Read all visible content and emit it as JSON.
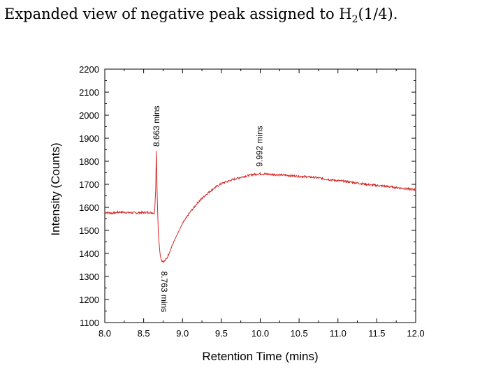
{
  "caption": {
    "text_before": "Expanded view of negative peak assigned to H",
    "subscript": "2",
    "text_after": "(1/4)."
  },
  "chart_data": {
    "type": "line",
    "title": "",
    "xlabel": "Retention Time (mins)",
    "ylabel": "Intensity (Counts)",
    "xlim": [
      8.0,
      12.0
    ],
    "ylim": [
      1100,
      2200
    ],
    "x_ticks": [
      "8.0",
      "8.5",
      "9.0",
      "9.5",
      "10.0",
      "10.5",
      "11.0",
      "11.5",
      "12.0"
    ],
    "y_ticks": [
      "1100",
      "1200",
      "1300",
      "1400",
      "1500",
      "1600",
      "1700",
      "1800",
      "1900",
      "2000",
      "2100",
      "2200"
    ],
    "grid": false,
    "legend": "none",
    "line_color": "#d42a2a",
    "series": [
      {
        "x": [
          8.0,
          8.1,
          8.2,
          8.3,
          8.4,
          8.5,
          8.6,
          8.64,
          8.655,
          8.663,
          8.675,
          8.69,
          8.71,
          8.73,
          8.763,
          8.8,
          8.85,
          8.9,
          9.0,
          9.1,
          9.2,
          9.3,
          9.4,
          9.5,
          9.6,
          9.7,
          9.8,
          9.9,
          9.992,
          10.1,
          10.2,
          10.3,
          10.5,
          10.7,
          10.9,
          11.0,
          11.2,
          11.4,
          11.6,
          11.8,
          12.0
        ],
        "y": [
          1578,
          1575,
          1580,
          1577,
          1576,
          1578,
          1577,
          1575,
          1680,
          1845,
          1640,
          1480,
          1400,
          1370,
          1365,
          1380,
          1420,
          1460,
          1530,
          1580,
          1622,
          1655,
          1682,
          1703,
          1715,
          1726,
          1735,
          1742,
          1746,
          1744,
          1742,
          1740,
          1735,
          1730,
          1720,
          1716,
          1708,
          1698,
          1692,
          1684,
          1676
        ]
      }
    ],
    "annotations": [
      {
        "text": "8.663 mins",
        "x": 8.663,
        "y": 1845
      },
      {
        "text": "8.763 mins",
        "x": 8.763,
        "y": 1365
      },
      {
        "text": "9.992 mins",
        "x": 9.992,
        "y": 1746
      }
    ]
  }
}
